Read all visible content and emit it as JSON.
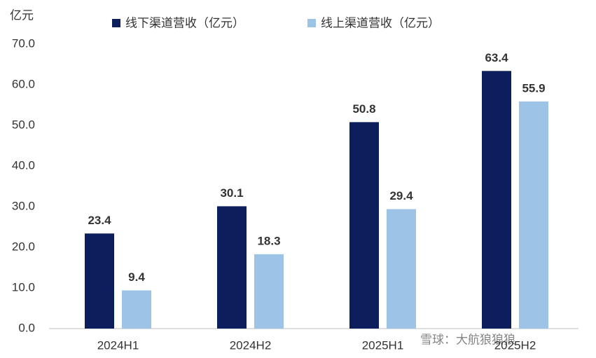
{
  "chart_data": {
    "type": "bar",
    "y_unit": "亿元",
    "categories": [
      "2024H1",
      "2024H2",
      "2025H1",
      "2025H2"
    ],
    "series": [
      {
        "name": "线下渠道营收（亿元）",
        "color": "#0c1f5c",
        "values": [
          23.4,
          30.1,
          50.8,
          63.4
        ]
      },
      {
        "name": "线上渠道营收（亿元）",
        "color": "#9dc3e6",
        "values": [
          9.4,
          18.3,
          29.4,
          55.9
        ]
      }
    ],
    "ylim": [
      0,
      70
    ],
    "yticks": [
      {
        "value": 0,
        "label": "0.0"
      },
      {
        "value": 10,
        "label": "10.0"
      },
      {
        "value": 20,
        "label": "20.0"
      },
      {
        "value": 30,
        "label": "30.0"
      },
      {
        "value": 40,
        "label": "40.0"
      },
      {
        "value": 50,
        "label": "50.0"
      },
      {
        "value": 60,
        "label": "60.0"
      },
      {
        "value": 70,
        "label": "70.0"
      }
    ],
    "grid": false,
    "legend": "top",
    "watermark": "雪球：大航狼狼狼"
  }
}
